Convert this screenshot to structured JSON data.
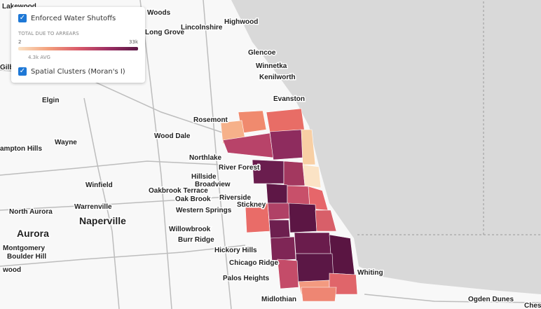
{
  "legend": {
    "layers": [
      {
        "label": "Enforced Water Shutoffs",
        "checked": true
      },
      {
        "label": "Spatial Clusters (Moran's I)",
        "checked": true
      }
    ],
    "scale_title": "TOTAL DUE TO ARREARS",
    "scale_min": "2",
    "scale_max": "33k",
    "scale_avg": "4.3k AVG"
  },
  "map": {
    "place_labels": [
      "Lakewood",
      "Woods",
      "Lincolnshire",
      "Highwood",
      "Long Grove",
      "Glencoe",
      "Winnetka",
      "Kenilworth",
      "Gilb",
      "Evanston",
      "Elgin",
      "Rosemont",
      "Wood Dale",
      "Wayne",
      "ampton Hills",
      "Northlake",
      "River Forest",
      "Hillside",
      "Broadview",
      "Winfield",
      "Oakbrook Terrace",
      "Oak Brook",
      "Riverside",
      "Stickney",
      "Warrenville",
      "North Aurora",
      "Western Springs",
      "Naperville",
      "Aurora",
      "Willowbrook",
      "Burr Ridge",
      "Montgomery",
      "Boulder Hill",
      "Hickory Hills",
      "Chicago Ridge",
      "wood",
      "Whiting",
      "Palos Heights",
      "Midlothian",
      "Ogden Dunes",
      "Ches"
    ]
  }
}
